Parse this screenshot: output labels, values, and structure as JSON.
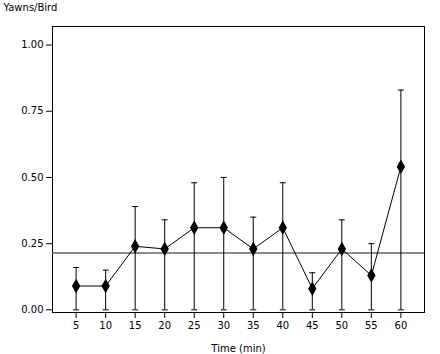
{
  "chart_data": {
    "type": "line",
    "x": [
      5,
      10,
      15,
      20,
      25,
      30,
      35,
      40,
      45,
      50,
      55,
      60
    ],
    "values": [
      0.09,
      0.09,
      0.24,
      0.23,
      0.31,
      0.31,
      0.23,
      0.31,
      0.08,
      0.23,
      0.13,
      0.54
    ],
    "error_lower": [
      0.09,
      0.09,
      0.24,
      0.23,
      0.31,
      0.31,
      0.23,
      0.31,
      0.08,
      0.23,
      0.13,
      0.54
    ],
    "error_upper": [
      0.07,
      0.06,
      0.15,
      0.11,
      0.17,
      0.19,
      0.12,
      0.17,
      0.06,
      0.11,
      0.12,
      0.29
    ],
    "mean_line": {
      "value": 0.215,
      "color": "#666666"
    },
    "color": "#000000",
    "marker": "diamond",
    "line_style": "solid",
    "xlabel": "Time (min)",
    "ylabel": "Yawns/Bird",
    "xlim": [
      1,
      64
    ],
    "xticks": [
      5,
      10,
      15,
      20,
      25,
      30,
      35,
      40,
      45,
      50,
      55,
      60
    ],
    "ylim": [
      -0.01,
      1.07
    ],
    "yticks": [
      {
        "value": 0,
        "label": "0.00"
      },
      {
        "value": 0.25,
        "label": "0.25"
      },
      {
        "value": 0.5,
        "label": "0.50"
      },
      {
        "value": 0.75,
        "label": "0.75"
      },
      {
        "value": 1,
        "label": "1.00"
      }
    ],
    "grid": false
  }
}
